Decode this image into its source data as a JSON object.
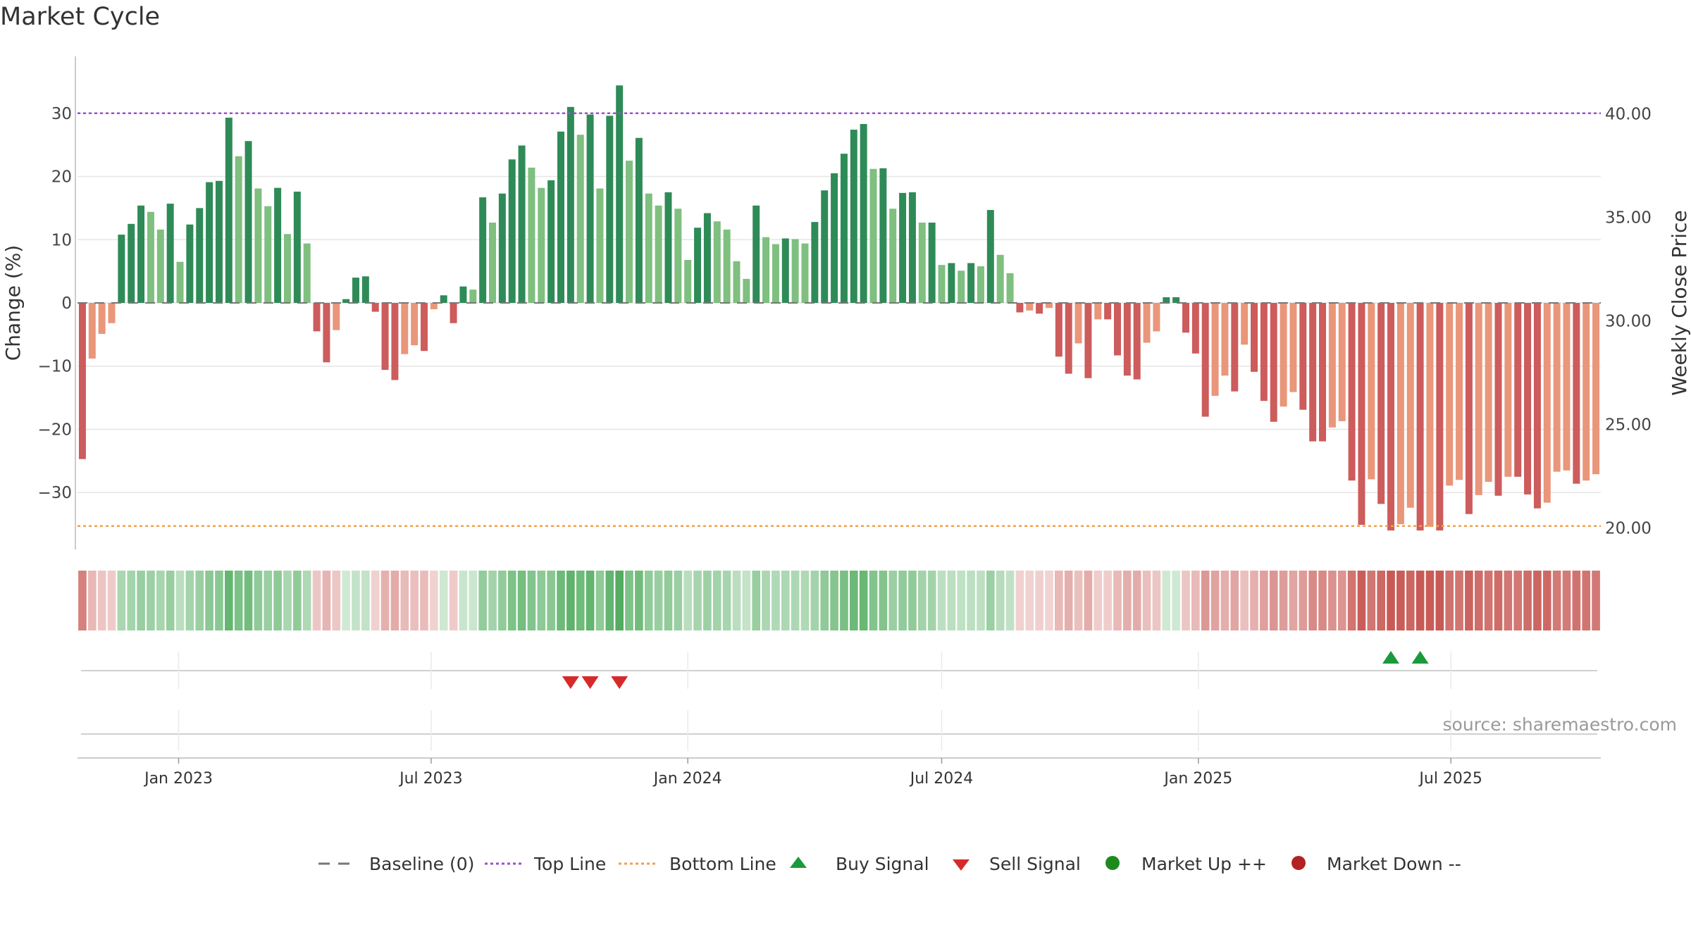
{
  "chart_data": {
    "type": "bar",
    "title": "Market Cycle",
    "ylabel_left": "Change (%)",
    "ylabel_right": "Weekly Close Price",
    "source": "source: sharemaestro.com",
    "ylim_left": [
      -39,
      39
    ],
    "ylim_right": [
      18.96,
      42.77
    ],
    "yticks_left": [
      30,
      20,
      10,
      0,
      -10,
      -20,
      -30
    ],
    "yticks_left_labels": [
      "30",
      "20",
      "10",
      "0",
      "−10",
      "−20",
      "−30"
    ],
    "yticks_right": [
      40,
      35,
      30,
      25,
      20
    ],
    "yticks_right_labels": [
      "40.00",
      "35.00",
      "30.00",
      "25.00",
      "20.00"
    ],
    "top_line": 30,
    "bottom_line": -35.3,
    "start_date": "2022-10-24",
    "interval_days": 7,
    "xaxis_range": [
      "2022-10-24",
      "2025-09-29"
    ],
    "xticks": [
      "2023-01-01",
      "2023-07-01",
      "2024-01-01",
      "2024-07-01",
      "2025-01-01",
      "2025-07-01"
    ],
    "xtick_labels": [
      "Jan 2023",
      "Jul 2023",
      "Jan 2024",
      "Jul 2024",
      "Jan 2025",
      "Jul 2025"
    ],
    "series": [
      {
        "values": [
          -24.7,
          -8.8,
          -4.9,
          -3.2,
          10.8,
          12.5,
          15.4,
          14.4,
          11.6,
          15.7,
          6.5,
          12.4,
          15,
          19.1,
          19.3,
          29.3,
          23.2,
          25.6,
          18.1,
          15.3,
          18.2,
          10.9,
          17.6,
          9.4,
          -4.5,
          -9.4,
          -4.3,
          0.6,
          4,
          4.2,
          -1.4,
          -10.6,
          -12.2,
          -8.1,
          -6.7,
          -7.6,
          -1,
          1.2,
          -3.2,
          2.6,
          2.1,
          16.7,
          12.7,
          17.3,
          22.7,
          24.9,
          21.4,
          18.2,
          19.4,
          27.1,
          31,
          26.6,
          29.8,
          18.1,
          29.6,
          34.4,
          22.5,
          26.1,
          17.3,
          15.4,
          17.5,
          14.9,
          6.8,
          11.9,
          14.2,
          12.9,
          11.6,
          6.6,
          3.8,
          15.4,
          10.4,
          9.3,
          10.2,
          10.1,
          9.4,
          12.8,
          17.8,
          20.5,
          23.6,
          27.4,
          28.3,
          21.2,
          21.3,
          14.9,
          17.4,
          17.5,
          12.7,
          12.7,
          6,
          6.3,
          5.1,
          6.3,
          5.8,
          14.7,
          7.6,
          4.7,
          -1.5,
          -1.2,
          -1.7,
          -0.8,
          -8.5,
          -11.2,
          -6.4,
          -11.9,
          -2.6,
          -2.6,
          -8.3,
          -11.5,
          -12.1,
          -6.3,
          -4.5,
          0.9,
          0.9,
          -4.7,
          -8,
          -18,
          -14.7,
          -11.5,
          -14,
          -6.6,
          -10.9,
          -15.5,
          -18.8,
          -16.4,
          -14.1,
          -16.9,
          -21.9,
          -21.9,
          -19.7,
          -18.7,
          -28.1,
          -35.1,
          -27.9,
          -31.8,
          -36,
          -35,
          -32.4,
          -36,
          -35.4,
          -36,
          -28.9,
          -28,
          -33.4,
          -30.4,
          -28.3,
          -30.5,
          -27.5,
          -27.5,
          -30.3,
          -32.5,
          -31.6,
          -26.7,
          -26.5,
          -28.6,
          -28.1,
          -27.1
        ]
      }
    ],
    "signals": {
      "sell_weeks": [
        50,
        52,
        55
      ],
      "buy_weeks": [
        134,
        137
      ]
    },
    "legend": [
      "Baseline (0)",
      "Top Line",
      "Bottom Line",
      "Buy Signal",
      "Sell Signal",
      "Market Up ++",
      "Market Down --"
    ],
    "legend_position": "bottom",
    "grid": true
  },
  "colors": {
    "strong_up": "#2e8b57",
    "weak_up": "#7fbf7f",
    "strong_down": "#cd5c5c",
    "weak_down": "#e9967a",
    "top_line": "#9b4fd0",
    "bottom_line": "#f0a050",
    "baseline": "#777777",
    "buy": "#1a9a3a",
    "sell": "#d62a2a",
    "market_up": "#1e8a1e",
    "market_down": "#b22222",
    "grid": "#e6e6e6"
  }
}
